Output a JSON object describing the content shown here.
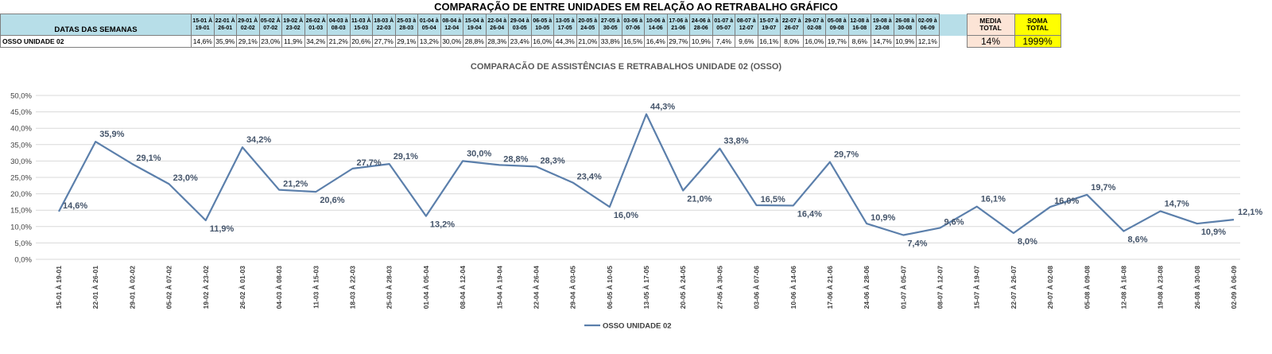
{
  "header": {
    "title": "COMPARAÇÃO DE ENTRE UNIDADES EM RELAÇÃO AO RETRABALHO GRÁFICO",
    "dates_label": "DATAS DAS SEMANAS",
    "media_label_1": "MEDIA",
    "media_label_2": "TOTAL",
    "soma_label_1": "SOMA",
    "soma_label_2": "TOTAL"
  },
  "table": {
    "weeks": [
      [
        "15-01 À",
        "19-01"
      ],
      [
        "22-01 À",
        "26-01"
      ],
      [
        "29-01 À",
        "02-02"
      ],
      [
        "05-02 À",
        "07-02"
      ],
      [
        "19-02 À",
        "23-02"
      ],
      [
        "26-02 À",
        "01-03"
      ],
      [
        "04-03 à",
        "08-03"
      ],
      [
        "11-03 À",
        "15-03"
      ],
      [
        "18-03 À",
        "22-03"
      ],
      [
        "25-03 à",
        "28-03"
      ],
      [
        "01-04 à",
        "05-04"
      ],
      [
        "08-04 à",
        "12-04"
      ],
      [
        "15-04 à",
        "19-04"
      ],
      [
        "22-04 à",
        "26-04"
      ],
      [
        "29-04 à",
        "03-05"
      ],
      [
        "06-05 à",
        "10-05"
      ],
      [
        "13-05 à",
        "17-05"
      ],
      [
        "20-05 à",
        "24-05"
      ],
      [
        "27-05 à",
        "30-05"
      ],
      [
        "03-06 à",
        "07-06"
      ],
      [
        "10-06 à",
        "14-06"
      ],
      [
        "17-06 à",
        "21-06"
      ],
      [
        "24-06 à",
        "28-06"
      ],
      [
        "01-07 à",
        "05-07"
      ],
      [
        "08-07 à",
        "12-07"
      ],
      [
        "15-07 à",
        "19-07"
      ],
      [
        "22-07 à",
        "26-07"
      ],
      [
        "29-07 à",
        "02-08"
      ],
      [
        "05-08 à",
        "09-08"
      ],
      [
        "12-08 à",
        "16-08"
      ],
      [
        "19-08 à",
        "23-08"
      ],
      [
        "26-08 à",
        "30-08"
      ],
      [
        "02-09 à",
        "06-09"
      ]
    ],
    "row_label": "OSSO UNIDADE 02",
    "row_values": [
      "14,6%",
      "35,9%",
      "29,1%",
      "23,0%",
      "11,9%",
      "34,2%",
      "21,2%",
      "20,6%",
      "27,7%",
      "29,1%",
      "13,2%",
      "30,0%",
      "28,8%",
      "28,3%",
      "23,4%",
      "16,0%",
      "44,3%",
      "21,0%",
      "33,8%",
      "16,5%",
      "16,4%",
      "29,7%",
      "10,9%",
      "7,4%",
      "9,6%",
      "16,1%",
      "8,0%",
      "16,0%",
      "19,7%",
      "8,6%",
      "14,7%",
      "10,9%",
      "12,1%"
    ],
    "media_value": "14%",
    "soma_value": "1999%"
  },
  "chart_data": {
    "type": "line",
    "title": "COMPARACÃO DE ASSISTÊNCIAS E RETRABALHOS UNIDADE 02  (OSSO)",
    "categories": [
      "15-01 À 19-01",
      "22-01 À 26-01",
      "29-01 À 02-02",
      "05-02 À 07-02",
      "19-02 À 23-02",
      "26-02 À 01-03",
      "04-03 À 08-03",
      "11-03 À 15-03",
      "18-03 À 22-03",
      "25-03 À 28-03",
      "01-04 À 05-04",
      "08-04 À 12-04",
      "15-04 À 19-04",
      "22-04 À 26-04",
      "29-04 À 03-05",
      "06-05 À 10-05",
      "13-05 À 17-05",
      "20-05 À 24-05",
      "27-05 À 30-05",
      "03-06 À 07-06",
      "10-06 À 14-06",
      "17-06 À 21-06",
      "24-06 À 28-06",
      "01-07 À 05-07",
      "08-07 À 12-07",
      "15-07 À 19-07",
      "22-07 À 26-07",
      "29-07 À 02-08",
      "05-08 À 09-08",
      "12-08 À 16-08",
      "19-08 À 23-08",
      "26-08 À 30-08",
      "02-09 À 06-09"
    ],
    "series": [
      {
        "name": "OSSO UNIDADE 02",
        "color": "#5b7fab",
        "values": [
          14.6,
          35.9,
          29.1,
          23.0,
          11.9,
          34.2,
          21.2,
          20.6,
          27.7,
          29.1,
          13.2,
          30.0,
          28.8,
          28.3,
          23.4,
          16.0,
          44.3,
          21.0,
          33.8,
          16.5,
          16.4,
          29.7,
          10.9,
          7.4,
          9.6,
          16.1,
          8.0,
          16.0,
          19.7,
          8.6,
          14.7,
          10.9,
          12.1
        ],
        "labels": [
          "14,6%",
          "35,9%",
          "29,1%",
          "23,0%",
          "11,9%",
          "34,2%",
          "21,2%",
          "20,6%",
          "27,7%",
          "29,1%",
          "13,2%",
          "30,0%",
          "28,8%",
          "28,3%",
          "23,4%",
          "16,0%",
          "44,3%",
          "21,0%",
          "33,8%",
          "16,5%",
          "16,4%",
          "29,7%",
          "10,9%",
          "7,4%",
          "9,6%",
          "16,1%",
          "8,0%",
          "16,0%",
          "19,7%",
          "8,6%",
          "14,7%",
          "10,9%",
          "12,1%"
        ]
      }
    ],
    "ylim": [
      0,
      50
    ],
    "yticks": [
      "0,0%",
      "5,0%",
      "10,0%",
      "15,0%",
      "20,0%",
      "25,0%",
      "30,0%",
      "35,0%",
      "40,0%",
      "45,0%",
      "50,0%"
    ],
    "grid": true,
    "legend": "bottom"
  }
}
